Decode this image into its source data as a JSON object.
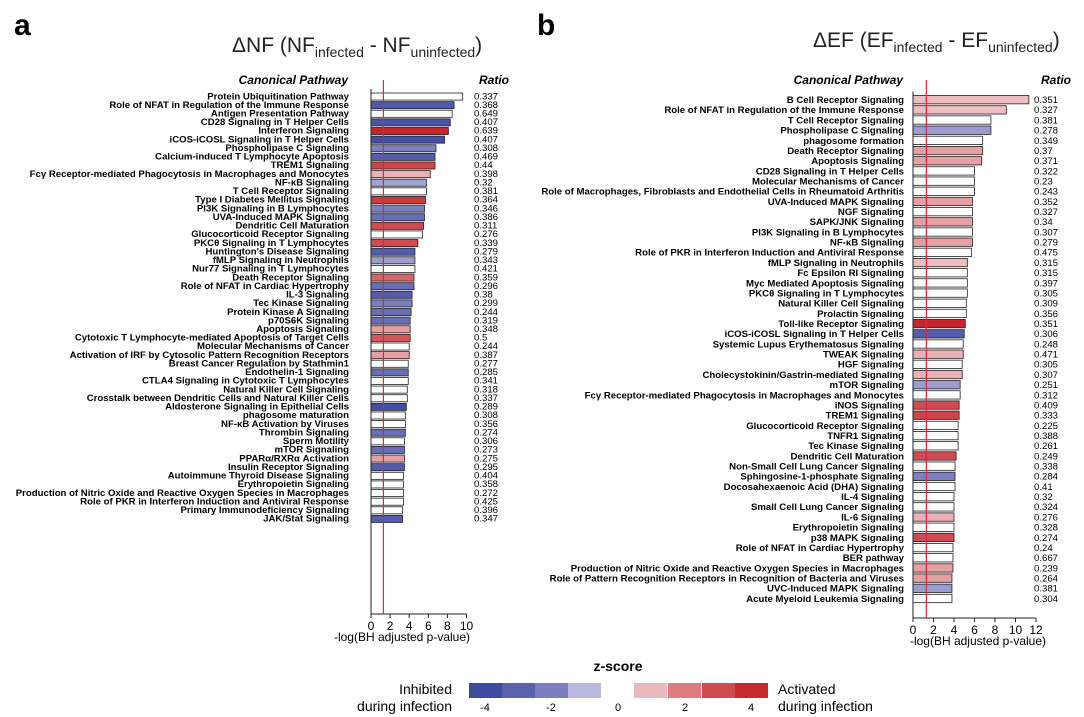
{
  "chart_data": [
    {
      "panel": "a",
      "type": "bar",
      "orientation": "horizontal",
      "title": {
        "main": "ΔNF (NF",
        "sub1": "infected",
        "mid": " - NF",
        "sub2": "uninfected",
        "end": ")"
      },
      "row_header": "Canonical Pathway",
      "value_header": "Ratio",
      "xlabel": "-log(BH adjusted p-value)",
      "xlim": [
        0,
        10
      ],
      "xticks": [
        0,
        2,
        4,
        6,
        8,
        10
      ],
      "threshold": 1.3,
      "threshold_color": "#d7263d",
      "rows": [
        {
          "label": "Protein Ubiquitination Pathway",
          "value": 9.6,
          "z": null,
          "ratio": "0.337"
        },
        {
          "label": "Role of NFAT in Regulation of the Immune Response",
          "value": 8.7,
          "z": -3.2,
          "ratio": "0.368"
        },
        {
          "label": "Antigen Presentation Pathway",
          "value": 8.5,
          "z": null,
          "ratio": "0.649"
        },
        {
          "label": "CD28 Signaling in T Helper Cells",
          "value": 8.3,
          "z": -3.5,
          "ratio": "0.407"
        },
        {
          "label": "Interferon Signaling",
          "value": 8.1,
          "z": 4.5,
          "ratio": "0.639"
        },
        {
          "label": "iCOS-iCOSL Signaling in T Helper Cells",
          "value": 7.7,
          "z": -3.8,
          "ratio": "0.407"
        },
        {
          "label": "Phospholipase C Signaling",
          "value": 6.8,
          "z": -2.0,
          "ratio": "0.308"
        },
        {
          "label": "Calcium-induced T Lymphocyte Apoptosis",
          "value": 6.7,
          "z": -3.0,
          "ratio": "0.469"
        },
        {
          "label": "TREM1 Signaling",
          "value": 6.7,
          "z": 3.2,
          "ratio": "0.44"
        },
        {
          "label": "Fcγ Receptor-mediated Phagocytosis in Macrophages and Monocytes",
          "value": 6.2,
          "z": 1.2,
          "ratio": "0.398"
        },
        {
          "label": "NF-κB Signaling",
          "value": 5.8,
          "z": -1.4,
          "ratio": "0.32"
        },
        {
          "label": "T Cell Receptor Signaling",
          "value": 5.8,
          "z": null,
          "ratio": "0.381"
        },
        {
          "label": "Type I Diabetes Mellitus Signaling",
          "value": 5.7,
          "z": 3.5,
          "ratio": "0.364"
        },
        {
          "label": "PI3K Signaling in B Lymphocytes",
          "value": 5.6,
          "z": -2.0,
          "ratio": "0.346"
        },
        {
          "label": "UVA-Induced MAPK Signaling",
          "value": 5.6,
          "z": -2.5,
          "ratio": "0.386"
        },
        {
          "label": "Dendritic Cell Maturation",
          "value": 5.5,
          "z": 3.0,
          "ratio": "0.311"
        },
        {
          "label": "Glucocorticoid Receptor Signaling",
          "value": 5.4,
          "z": null,
          "ratio": "0.276"
        },
        {
          "label": "PKCθ Signaling in T Lymphocytes",
          "value": 4.9,
          "z": 3.0,
          "ratio": "0.339"
        },
        {
          "label": "Huntington's Disease Signaling",
          "value": 4.6,
          "z": -3.0,
          "ratio": "0.279"
        },
        {
          "label": "fMLP Signaling in Neutrophils",
          "value": 4.6,
          "z": -1.5,
          "ratio": "0.343"
        },
        {
          "label": "Nur77 Signaling in T Lymphocytes",
          "value": 4.6,
          "z": null,
          "ratio": "0.421"
        },
        {
          "label": "Death Receptor Signaling",
          "value": 4.5,
          "z": 2.5,
          "ratio": "0.359"
        },
        {
          "label": "Role of NFAT in Cardiac Hypertrophy",
          "value": 4.5,
          "z": -2.5,
          "ratio": "0.296"
        },
        {
          "label": "IL-3 Signaling",
          "value": 4.3,
          "z": -3.0,
          "ratio": "0.38"
        },
        {
          "label": "Tec Kinase Signaling",
          "value": 4.3,
          "z": -2.0,
          "ratio": "0.299"
        },
        {
          "label": "Protein Kinase A Signaling",
          "value": 4.2,
          "z": -2.5,
          "ratio": "0.244"
        },
        {
          "label": "p70S6K Signaling",
          "value": 4.1,
          "z": -2.5,
          "ratio": "0.319"
        },
        {
          "label": "Apoptosis Signaling",
          "value": 4.1,
          "z": 1.5,
          "ratio": "0.348"
        },
        {
          "label": "Cytotoxic T Lymphocyte-mediated Apoptosis of Target Cells",
          "value": 4.1,
          "z": 2.8,
          "ratio": "0.5"
        },
        {
          "label": "Molecular Mechanisms of Cancer",
          "value": 4.0,
          "z": null,
          "ratio": "0.244"
        },
        {
          "label": "Activation of IRF by Cytosolic Pattern Recognition Receptors",
          "value": 4.0,
          "z": 1.5,
          "ratio": "0.387"
        },
        {
          "label": "Breast Cancer Regulation by Stathmin1",
          "value": 3.9,
          "z": null,
          "ratio": "0.277"
        },
        {
          "label": "Endothelin-1 Signaling",
          "value": 3.9,
          "z": -2.5,
          "ratio": "0.285"
        },
        {
          "label": "CTLA4 Signaling in Cytotoxic T Lymphocytes",
          "value": 3.9,
          "z": null,
          "ratio": "0.341"
        },
        {
          "label": "Natural Killer Cell Signaling",
          "value": 3.8,
          "z": null,
          "ratio": "0.318"
        },
        {
          "label": "Crosstalk between Dendritic Cells and Natural Killer Cells",
          "value": 3.8,
          "z": null,
          "ratio": "0.337"
        },
        {
          "label": "Aldosterone Signaling in Epithelial Cells",
          "value": 3.7,
          "z": -3.8,
          "ratio": "0.289"
        },
        {
          "label": "phagosome maturation",
          "value": 3.6,
          "z": null,
          "ratio": "0.308"
        },
        {
          "label": "NF-κB Activation by Viruses",
          "value": 3.6,
          "z": null,
          "ratio": "0.356"
        },
        {
          "label": "Thrombin Signaling",
          "value": 3.6,
          "z": -2.5,
          "ratio": "0.274"
        },
        {
          "label": "Sperm Motility",
          "value": 3.5,
          "z": null,
          "ratio": "0.306"
        },
        {
          "label": "mTOR Signaling",
          "value": 3.5,
          "z": -2.5,
          "ratio": "0.273"
        },
        {
          "label": "PPARα/RXRα Activation",
          "value": 3.5,
          "z": 1.5,
          "ratio": "0.275"
        },
        {
          "label": "Insulin Receptor Signaling",
          "value": 3.5,
          "z": -3.0,
          "ratio": "0.295"
        },
        {
          "label": "Autoimmune Thyroid Disease Signaling",
          "value": 3.4,
          "z": null,
          "ratio": "0.404"
        },
        {
          "label": "Erythropoietin Signaling",
          "value": 3.4,
          "z": null,
          "ratio": "0.358"
        },
        {
          "label": "Production of Nitric Oxide and Reactive Oxygen Species in Macrophages",
          "value": 3.4,
          "z": null,
          "ratio": "0.272"
        },
        {
          "label": "Role of PKR in Interferon Induction and Antiviral Response",
          "value": 3.4,
          "z": null,
          "ratio": "0.425"
        },
        {
          "label": "Primary Immunodeficiency Signaling",
          "value": 3.3,
          "z": null,
          "ratio": "0.396"
        },
        {
          "label": "JAK/Stat Signaling",
          "value": 3.3,
          "z": -3.0,
          "ratio": "0.347"
        }
      ]
    },
    {
      "panel": "b",
      "type": "bar",
      "orientation": "horizontal",
      "title": {
        "main": "ΔEF (EF",
        "sub1": "infected",
        "mid": " - EF",
        "sub2": "uninfected",
        "end": ")"
      },
      "row_header": "Canonical Pathway",
      "value_header": "Ratio",
      "xlabel": "-log(BH adjusted p-value)",
      "xlim": [
        0,
        12
      ],
      "xticks": [
        0,
        2,
        4,
        6,
        8,
        10,
        12
      ],
      "threshold": 1.3,
      "threshold_color": "#d7263d",
      "rows": [
        {
          "label": "B Cell Receptor Signaling",
          "value": 11.3,
          "z": 1.0,
          "ratio": "0.351"
        },
        {
          "label": "Role of NFAT in Regulation of the Immune Response",
          "value": 9.1,
          "z": 1.0,
          "ratio": "0.327"
        },
        {
          "label": "T Cell Receptor Signaling",
          "value": 7.6,
          "z": null,
          "ratio": "0.381"
        },
        {
          "label": "Phospholipase C Signaling",
          "value": 7.6,
          "z": -1.5,
          "ratio": "0.278"
        },
        {
          "label": "phagosome formation",
          "value": 6.8,
          "z": null,
          "ratio": "0.349"
        },
        {
          "label": "Death Receptor Signaling",
          "value": 6.8,
          "z": 1.5,
          "ratio": "0.37"
        },
        {
          "label": "Apoptosis Signaling",
          "value": 6.7,
          "z": 1.5,
          "ratio": "0.371"
        },
        {
          "label": "CD28 Signaling in T Helper Cells",
          "value": 6.0,
          "z": null,
          "ratio": "0.322"
        },
        {
          "label": "Molecular Mechanisms of Cancer",
          "value": 6.0,
          "z": null,
          "ratio": "0.23"
        },
        {
          "label": "Role of Macrophages, Fibroblasts and Endothelial Cells in Rheumatoid Arthritis",
          "value": 6.0,
          "z": null,
          "ratio": "0.243"
        },
        {
          "label": "UVA-Induced MAPK Signaling",
          "value": 5.8,
          "z": 1.5,
          "ratio": "0.352"
        },
        {
          "label": "NGF Signaling",
          "value": 5.8,
          "z": null,
          "ratio": "0.327"
        },
        {
          "label": "SAPK/JNK Signaling",
          "value": 5.8,
          "z": 1.5,
          "ratio": "0.34"
        },
        {
          "label": "PI3K Signaling in B Lymphocytes",
          "value": 5.8,
          "z": null,
          "ratio": "0.307"
        },
        {
          "label": "NF-κB Signaling",
          "value": 5.8,
          "z": 1.5,
          "ratio": "0.279"
        },
        {
          "label": "Role of PKR in Interferon Induction and Antiviral Response",
          "value": 5.7,
          "z": null,
          "ratio": "0.475"
        },
        {
          "label": "fMLP Signaling in Neutrophils",
          "value": 5.3,
          "z": 1.0,
          "ratio": "0.315"
        },
        {
          "label": "Fc Epsilon RI Signaling",
          "value": 5.3,
          "z": null,
          "ratio": "0.315"
        },
        {
          "label": "Myc Mediated Apoptosis Signaling",
          "value": 5.3,
          "z": null,
          "ratio": "0.397"
        },
        {
          "label": "PKCθ Signaling in T Lymphocytes",
          "value": 5.3,
          "z": null,
          "ratio": "0.305"
        },
        {
          "label": "Natural Killer Cell Signaling",
          "value": 5.2,
          "z": null,
          "ratio": "0.309"
        },
        {
          "label": "Prolactin Signaling",
          "value": 5.2,
          "z": null,
          "ratio": "0.356"
        },
        {
          "label": "Toll-like Receptor Signaling",
          "value": 5.1,
          "z": 4.2,
          "ratio": "0.351"
        },
        {
          "label": "iCOS-iCOSL Signaling in T Helper Cells",
          "value": 5.0,
          "z": -3.0,
          "ratio": "0.306"
        },
        {
          "label": "Systemic Lupus Erythematosus Signaling",
          "value": 4.9,
          "z": null,
          "ratio": "0.248"
        },
        {
          "label": "TWEAK Signaling",
          "value": 4.9,
          "z": 1.2,
          "ratio": "0.471"
        },
        {
          "label": "HGF Signaling",
          "value": 4.8,
          "z": null,
          "ratio": "0.305"
        },
        {
          "label": "Cholecystokinin/Gastrin-mediated Signaling",
          "value": 4.8,
          "z": 1.2,
          "ratio": "0.307"
        },
        {
          "label": "mTOR Signaling",
          "value": 4.6,
          "z": -1.5,
          "ratio": "0.251"
        },
        {
          "label": "Fcγ Receptor-mediated Phagocytosis in Macrophages and Monocytes",
          "value": 4.6,
          "z": null,
          "ratio": "0.312"
        },
        {
          "label": "iNOS Signaling",
          "value": 4.5,
          "z": 3.0,
          "ratio": "0.409"
        },
        {
          "label": "TREM1 Signaling",
          "value": 4.5,
          "z": 3.2,
          "ratio": "0.333"
        },
        {
          "label": "Glucocorticoid Receptor Signaling",
          "value": 4.4,
          "z": null,
          "ratio": "0.225"
        },
        {
          "label": "TNFR1 Signaling",
          "value": 4.4,
          "z": null,
          "ratio": "0.388"
        },
        {
          "label": "Tec Kinase Signaling",
          "value": 4.4,
          "z": null,
          "ratio": "0.261"
        },
        {
          "label": "Dendritic Cell Maturation",
          "value": 4.2,
          "z": 3.0,
          "ratio": "0.249"
        },
        {
          "label": "Non-Small Cell Lung Cancer Signaling",
          "value": 4.1,
          "z": null,
          "ratio": "0.338"
        },
        {
          "label": "Sphingosine-1-phosphate Signaling",
          "value": 4.1,
          "z": -2.0,
          "ratio": "0.284"
        },
        {
          "label": "Docosahexaenoic Acid (DHA) Signaling",
          "value": 4.1,
          "z": null,
          "ratio": "0.41"
        },
        {
          "label": "IL-4 Signaling",
          "value": 4.0,
          "z": null,
          "ratio": "0.32"
        },
        {
          "label": "Small Cell Lung Cancer Signaling",
          "value": 4.0,
          "z": null,
          "ratio": "0.324"
        },
        {
          "label": "IL-6 Signaling",
          "value": 4.0,
          "z": 1.2,
          "ratio": "0.276"
        },
        {
          "label": "Erythropoietin Signaling",
          "value": 4.0,
          "z": null,
          "ratio": "0.328"
        },
        {
          "label": "p38 MAPK Signaling",
          "value": 4.0,
          "z": 3.0,
          "ratio": "0.274"
        },
        {
          "label": "Role of NFAT in Cardiac Hypertrophy",
          "value": 3.9,
          "z": null,
          "ratio": "0.24"
        },
        {
          "label": "BER pathway",
          "value": 3.9,
          "z": null,
          "ratio": "0.667"
        },
        {
          "label": "Production of Nitric Oxide and Reactive Oxygen Species in Macrophages",
          "value": 3.9,
          "z": 1.5,
          "ratio": "0.239"
        },
        {
          "label": "Role of Pattern Recognition Receptors in Recognition of Bacteria and Viruses",
          "value": 3.8,
          "z": 1.5,
          "ratio": "0.264"
        },
        {
          "label": "UVC-Induced MAPK Signaling",
          "value": 3.8,
          "z": -1.5,
          "ratio": "0.381"
        },
        {
          "label": "Acute Myeloid Leukemia Signaling",
          "value": 3.8,
          "z": null,
          "ratio": "0.304"
        }
      ]
    }
  ],
  "legend": {
    "title": "z-score",
    "inhibited_line1": "Inhibited",
    "inhibited_line2": "during infection",
    "activated_line1": "Activated",
    "activated_line2": "during infection",
    "colors": [
      "#3b4ca2",
      "#5a62ad",
      "#7b7fc0",
      "#b8b9e0",
      "#ffffff",
      "#eab9bd",
      "#dc7b80",
      "#cf4a50",
      "#c42a2f"
    ],
    "tick_labels": [
      "-4",
      "-2",
      "0",
      "2",
      "4"
    ]
  }
}
